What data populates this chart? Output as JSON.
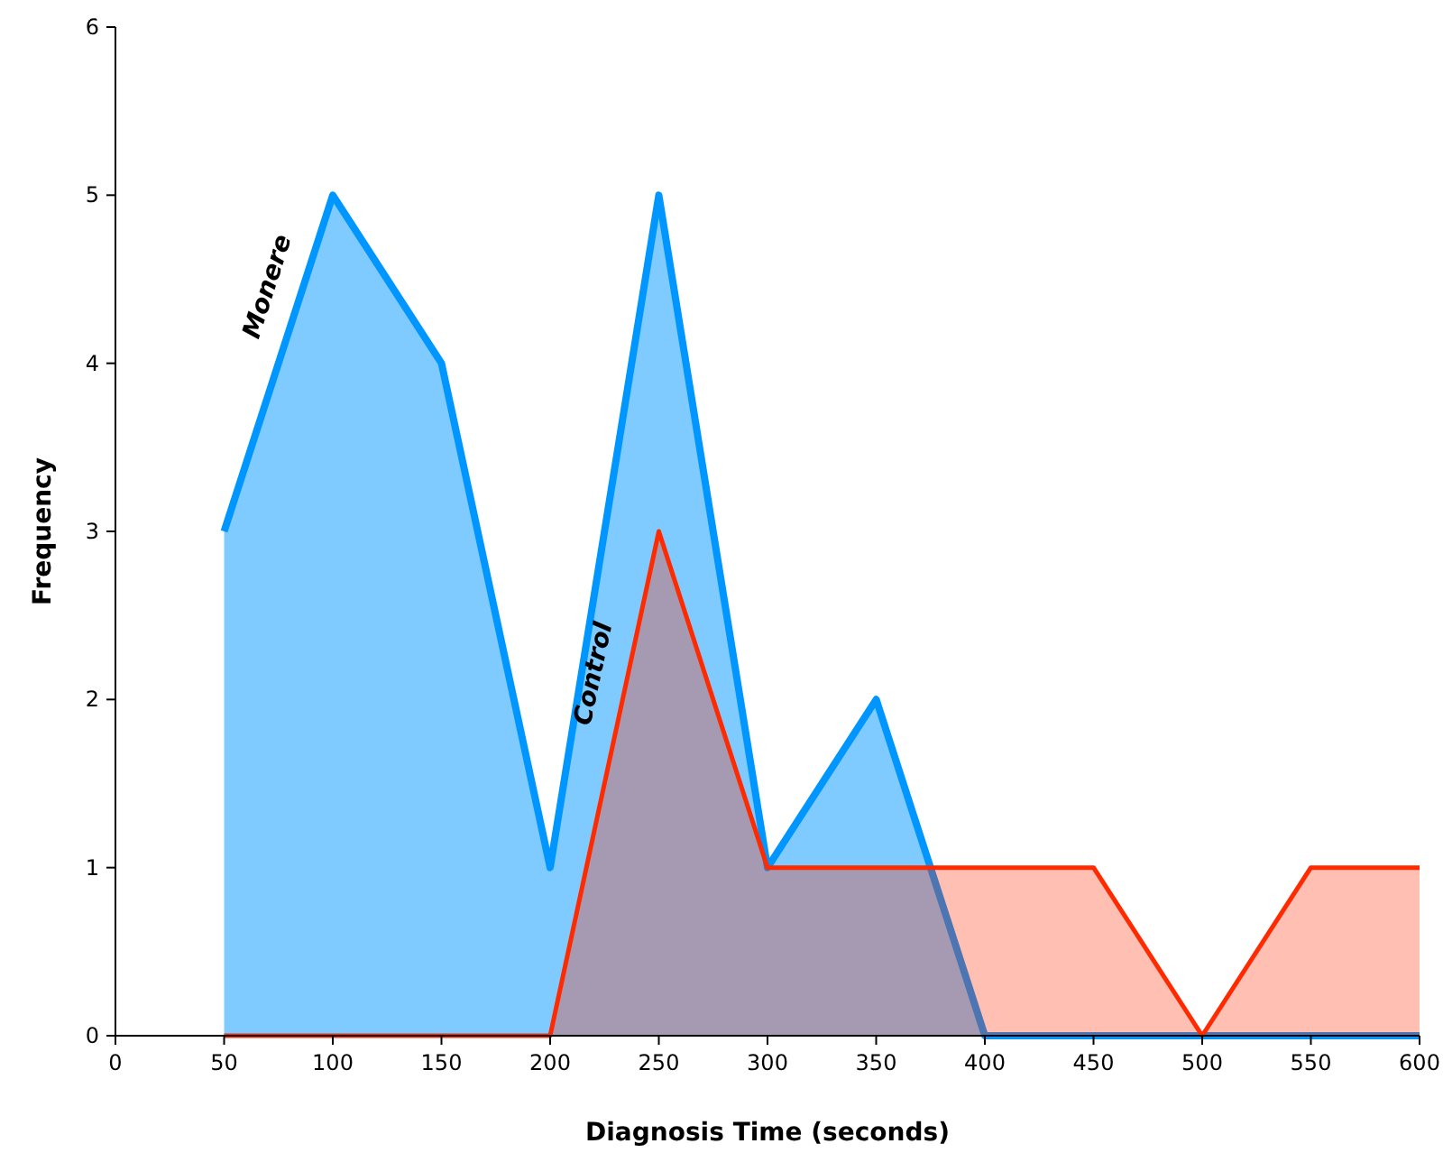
{
  "chart_data": {
    "type": "area",
    "xlabel": "Diagnosis Time (seconds)",
    "ylabel": "Frequency",
    "x": [
      50,
      100,
      150,
      200,
      250,
      300,
      350,
      400,
      450,
      500,
      550,
      600
    ],
    "series": [
      {
        "name": "Monere",
        "color": "#0096ff",
        "values": [
          3,
          5,
          4,
          1,
          5,
          1,
          2,
          0,
          0,
          0,
          0,
          0
        ]
      },
      {
        "name": "Control",
        "color": "#ff2a00",
        "values": [
          0,
          0,
          0,
          0,
          3,
          1,
          1,
          1,
          1,
          0,
          1,
          1
        ]
      }
    ],
    "xlim": [
      0,
      600
    ],
    "xticks": [
      0,
      50,
      100,
      150,
      200,
      250,
      300,
      350,
      400,
      450,
      500,
      550,
      600
    ],
    "ylim": [
      0,
      6
    ],
    "yticks": [
      0,
      1,
      2,
      3,
      4,
      5,
      6
    ],
    "grid": false,
    "marker": "none",
    "line_style": "solid"
  }
}
